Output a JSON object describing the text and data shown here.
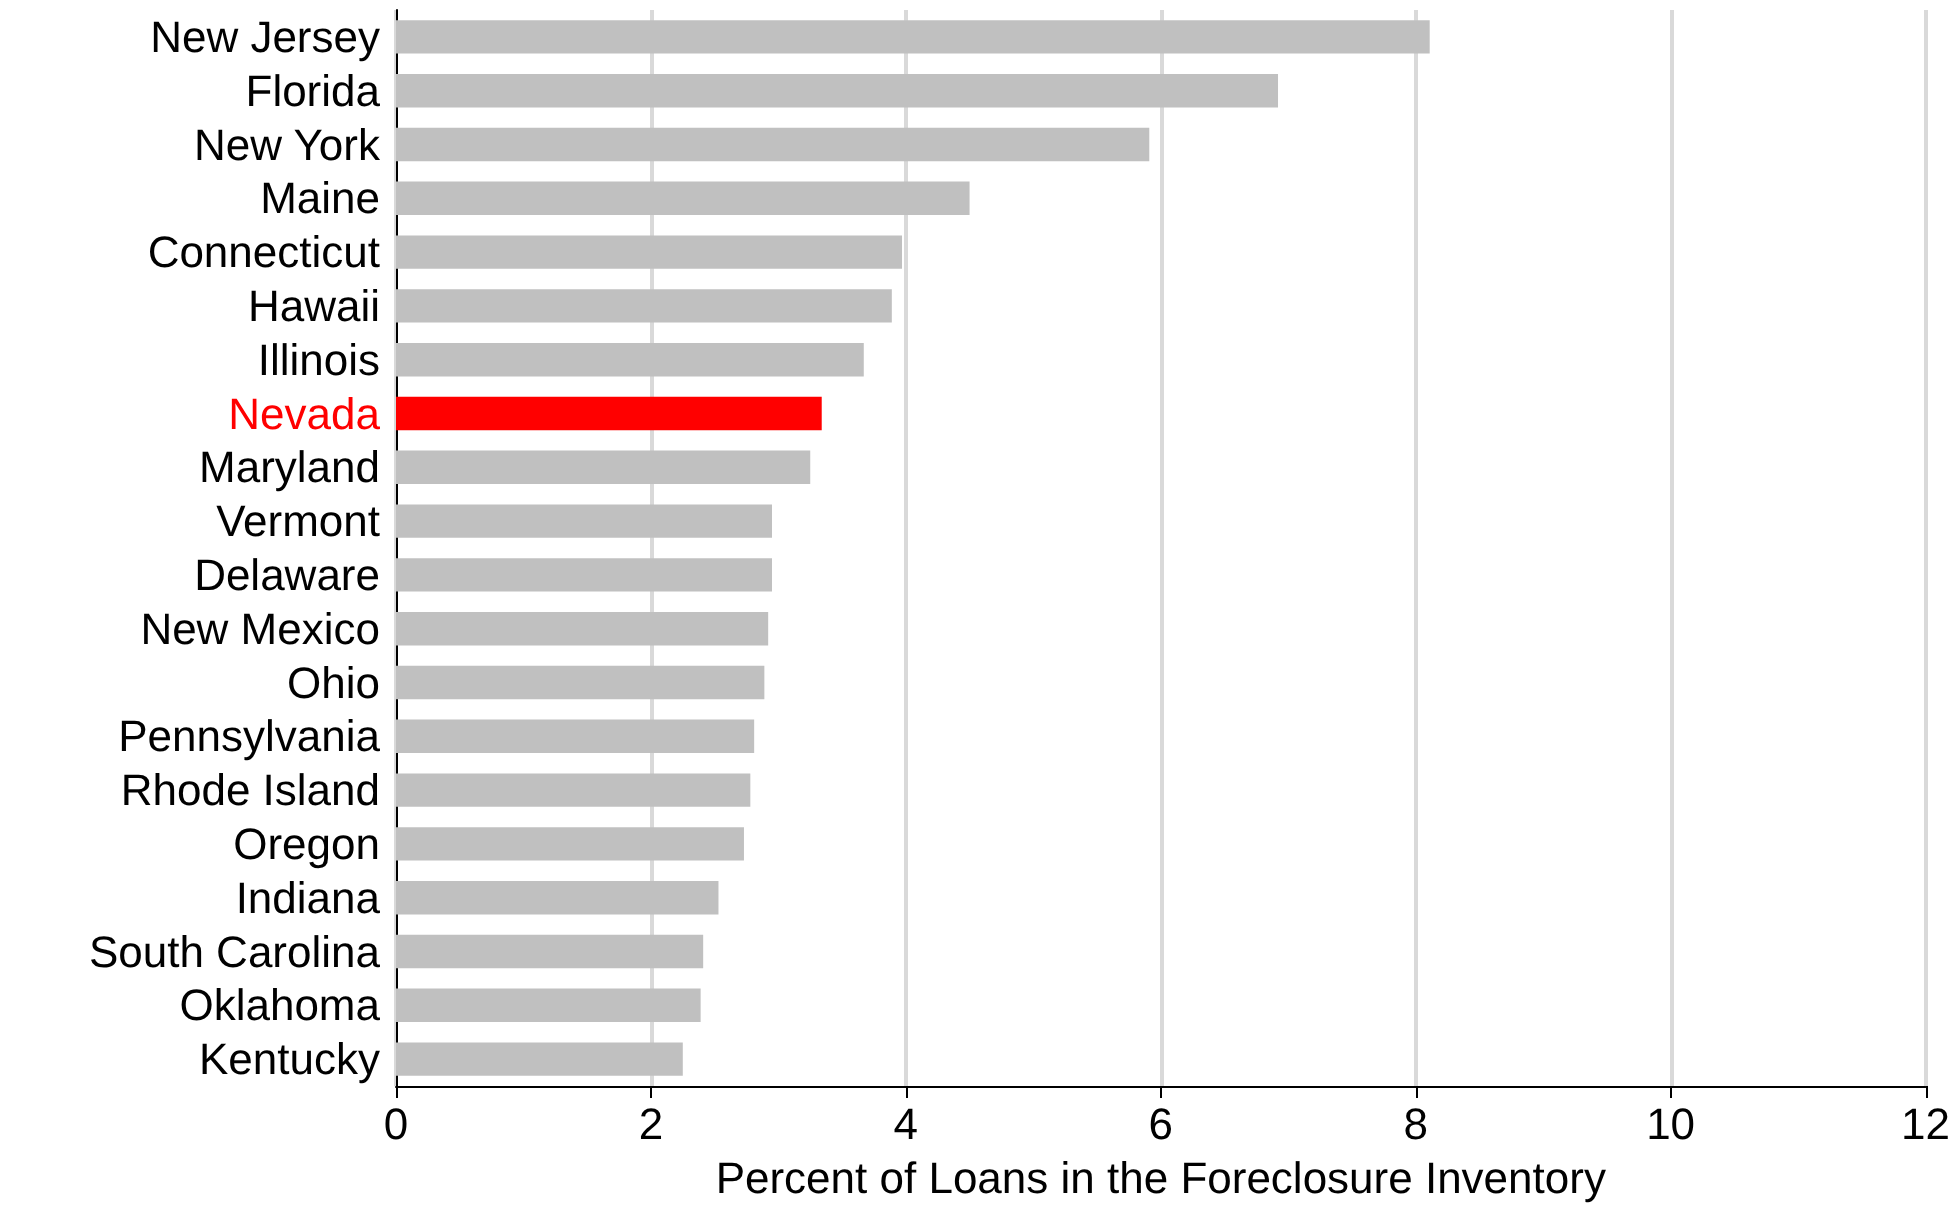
{
  "chart_data": {
    "type": "bar",
    "orientation": "horizontal",
    "xlabel": "Percent of Loans in the Foreclosure Inventory",
    "categories": [
      "New Jersey",
      "Florida",
      "New York",
      "Maine",
      "Connecticut",
      "Hawaii",
      "Illinois",
      "Nevada",
      "Maryland",
      "Vermont",
      "Delaware",
      "New Mexico",
      "Ohio",
      "Pennsylvania",
      "Rhode Island",
      "Oregon",
      "Indiana",
      "South Carolina",
      "Oklahoma",
      "Kentucky"
    ],
    "values": [
      8.11,
      6.92,
      5.91,
      4.5,
      3.97,
      3.89,
      3.67,
      3.34,
      3.25,
      2.95,
      2.95,
      2.92,
      2.89,
      2.81,
      2.78,
      2.73,
      2.53,
      2.41,
      2.39,
      2.25
    ],
    "colors": [
      "#c0c0c0",
      "#c0c0c0",
      "#c0c0c0",
      "#c0c0c0",
      "#c0c0c0",
      "#c0c0c0",
      "#c0c0c0",
      "#ff0000",
      "#c0c0c0",
      "#c0c0c0",
      "#c0c0c0",
      "#c0c0c0",
      "#c0c0c0",
      "#c0c0c0",
      "#c0c0c0",
      "#c0c0c0",
      "#c0c0c0",
      "#c0c0c0",
      "#c0c0c0",
      "#c0c0c0"
    ],
    "xlim": [
      0,
      12
    ],
    "xticks": [
      0,
      2,
      4,
      6,
      8,
      10,
      12
    ],
    "grid": "x"
  }
}
